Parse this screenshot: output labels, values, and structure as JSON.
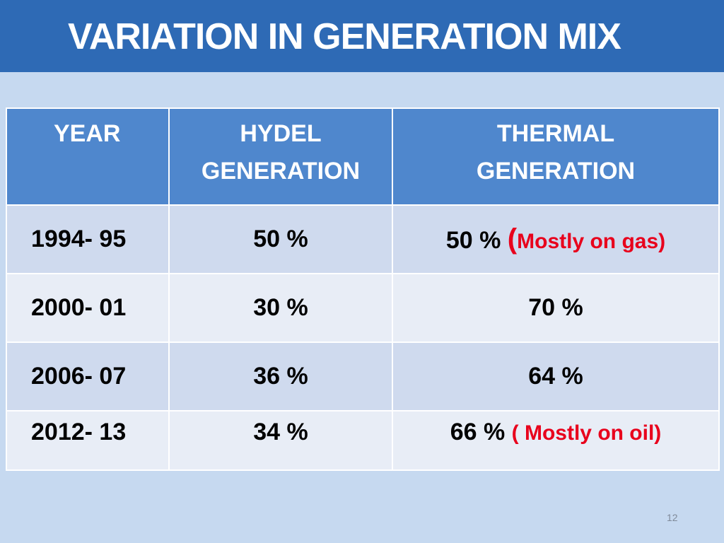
{
  "title": "VARIATION IN GENERATION MIX",
  "table": {
    "headers": [
      [
        "YEAR"
      ],
      [
        "HYDEL",
        "GENERATION"
      ],
      [
        "THERMAL",
        "GENERATION"
      ]
    ],
    "rows": [
      {
        "year": "1994- 95",
        "hydel": "50 %",
        "thermal": "50 %",
        "thermal_paren": "(",
        "thermal_note": "Mostly on gas)"
      },
      {
        "year": "2000- 01",
        "hydel": "30 %",
        "thermal": "70 %",
        "thermal_paren": "",
        "thermal_note": ""
      },
      {
        "year": "2006- 07",
        "hydel": "36 %",
        "thermal": "64 %",
        "thermal_paren": "",
        "thermal_note": ""
      },
      {
        "year": "2012- 13",
        "hydel": "34 %",
        "thermal": "66 %",
        "thermal_paren": "",
        "thermal_note": "( Mostly on oil)"
      }
    ]
  },
  "page_number": "12",
  "colors": {
    "title_bar": "#2e6ab5",
    "background": "#c6d9f0",
    "header": "#4f87cd",
    "row_band_dark": "#cfdaee",
    "row_band_light": "#e8edf6",
    "note_red": "#e8001c"
  }
}
